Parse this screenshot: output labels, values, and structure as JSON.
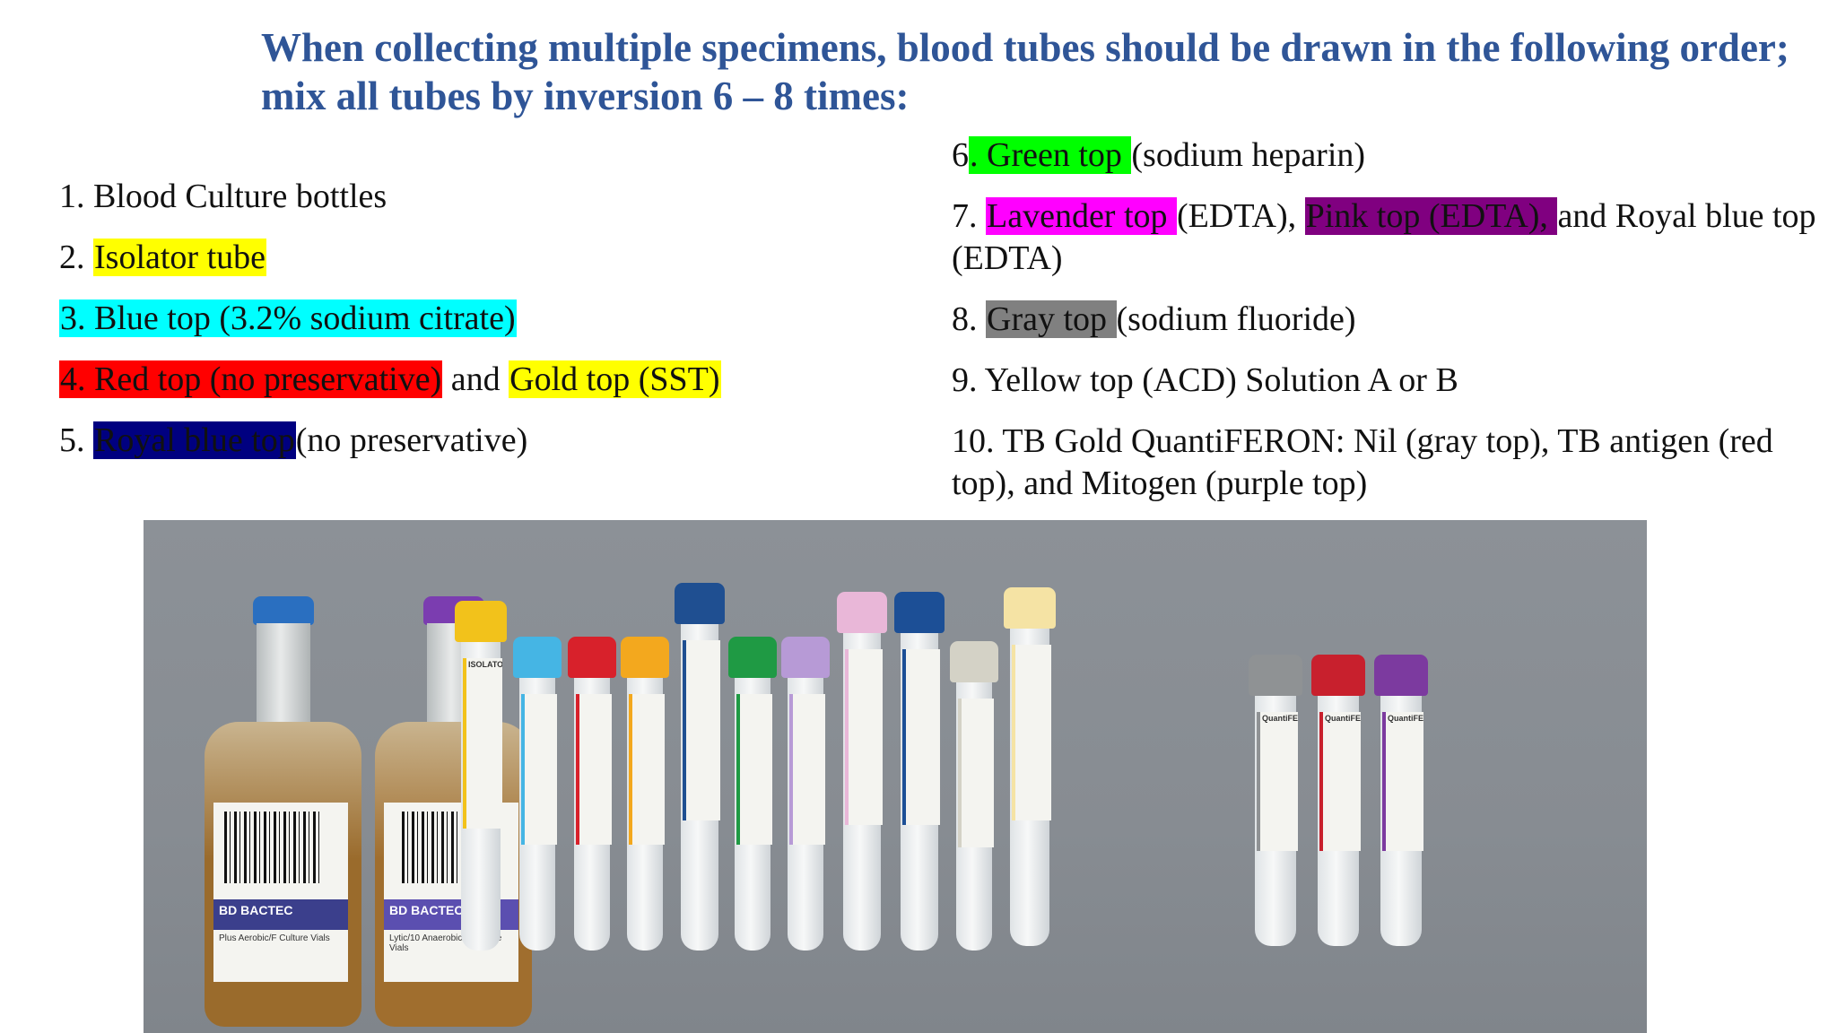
{
  "title": "When collecting multiple specimens, blood tubes should be drawn in the following order; mix all tubes by inversion 6 – 8 times:",
  "left_list": [
    {
      "num": "1. ",
      "text": "Blood Culture bottles"
    },
    {
      "num": "2. ",
      "hl": "Isolator tube",
      "color": "#ffff00"
    },
    {
      "hl": "3. Blue top (3.2% sodium citrate)",
      "color": "#00ffff"
    },
    {
      "hl": "4. Red top (no preservative)",
      "color": "#ff0000",
      "mid": " and ",
      "hl2": "Gold top (SST)",
      "color2": "#ffff00"
    },
    {
      "num": "5. ",
      "hl": "Royal blue top",
      "color": "#000080",
      "rest": "(no preservative)"
    }
  ],
  "right_list": [
    {
      "num": "6",
      "hl": ". Green top ",
      "color": "#00ff00",
      "rest": "(sodium heparin)"
    },
    {
      "num": "7. ",
      "hl": "Lavender top ",
      "color": "#ff00ff",
      "mid": "(EDTA), ",
      "hl2": "Pink top (EDTA), ",
      "color2": "#800080",
      "rest": "and Royal blue top (EDTA)"
    },
    {
      "num": "8. ",
      "hl": "Gray top ",
      "color": "#808080",
      "rest": "(sodium fluoride)"
    },
    {
      "num": "9. ",
      "text": "Yellow top (ACD) Solution A or B"
    },
    {
      "num": "10. ",
      "text": "TB Gold QuantiFERON: Nil (gray top), TB antigen (red top), and Mitogen (purple top)"
    }
  ],
  "photo": {
    "bottles": [
      {
        "label": "BD BACTEC",
        "sub": "Plus Aerobic/F Culture Vials",
        "cap_color": "#2a6fc0",
        "liquid": "#9a6b2c"
      },
      {
        "label": "BD BACTEC",
        "sub": "Lytic/10 Anaerobic/F Culture Vials",
        "cap_color": "#7b3db0",
        "liquid": "#a06e2e"
      }
    ],
    "tubes": [
      {
        "cap_color": "#f2c21b",
        "label": "ISOLATOR"
      },
      {
        "cap_color": "#45b5e4"
      },
      {
        "cap_color": "#d8212b"
      },
      {
        "cap_color": "#f3a81e"
      },
      {
        "cap_color": "#1f4f91"
      },
      {
        "cap_color": "#1f9a44"
      },
      {
        "cap_color": "#b79ad6"
      },
      {
        "cap_color": "#e9b7d8"
      },
      {
        "cap_color": "#1c4f96"
      },
      {
        "cap_color": "#d4d2c6"
      },
      {
        "cap_color": "#f5e3a4"
      },
      {
        "cap_color": "#8f9294",
        "label": "QuantiFERON"
      },
      {
        "cap_color": "#c8202d",
        "label": "QuantiFERON"
      },
      {
        "cap_color": "#7c3a9f",
        "label": "QuantiFERON"
      }
    ]
  }
}
